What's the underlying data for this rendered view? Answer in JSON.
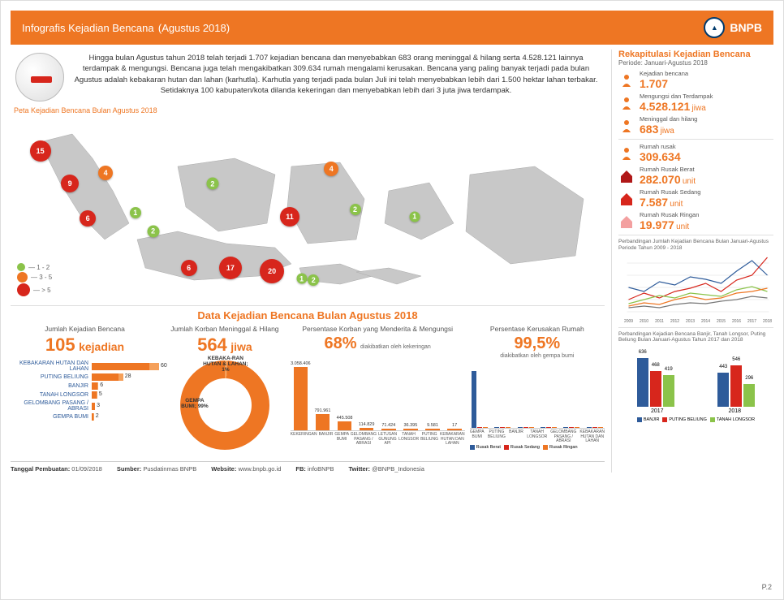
{
  "header": {
    "title": "Infografis Kejadian Bencana",
    "period": "(Agustus 2018)",
    "org": "BNPB"
  },
  "intro": "Hingga bulan Agustus tahun 2018 telah terjadi 1.707 kejadian bencana dan menyebabkan 683 orang meninggal & hilang serta 4.528.121 lainnya terdampak & mengungsi. Bencana juga telah mengakibatkan 309.634 rumah mengalami kerusakan. Bencana yang paling banyak terjadi pada bulan Agustus adalah kebakaran hutan dan lahan (karhutla). Karhutla yang terjadi pada bulan Juli ini telah menyebabkan lebih dari 1.500 hektar lahan terbakar. Setidaknya 100 kabupaten/kota dilanda kekeringan dan menyebabkan lebih dari 3 juta jiwa terdampak.",
  "map": {
    "title": "Peta Kejadian Bencana Bulan Agustus 2018",
    "bubbles": [
      {
        "v": "15",
        "x": 5,
        "y": 18,
        "c": "#d7261c",
        "s": 26
      },
      {
        "v": "9",
        "x": 10,
        "y": 36,
        "c": "#d7261c",
        "s": 22
      },
      {
        "v": "4",
        "x": 16,
        "y": 30,
        "c": "#ee7623",
        "s": 18
      },
      {
        "v": "6",
        "x": 13,
        "y": 55,
        "c": "#d7261c",
        "s": 20
      },
      {
        "v": "1",
        "x": 21,
        "y": 52,
        "c": "#8bc34a",
        "s": 14
      },
      {
        "v": "2",
        "x": 24,
        "y": 62,
        "c": "#8bc34a",
        "s": 15
      },
      {
        "v": "6",
        "x": 30,
        "y": 82,
        "c": "#d7261c",
        "s": 20
      },
      {
        "v": "17",
        "x": 37,
        "y": 82,
        "c": "#d7261c",
        "s": 28
      },
      {
        "v": "20",
        "x": 44,
        "y": 84,
        "c": "#d7261c",
        "s": 30
      },
      {
        "v": "1",
        "x": 49,
        "y": 88,
        "c": "#8bc34a",
        "s": 13
      },
      {
        "v": "2",
        "x": 51,
        "y": 89,
        "c": "#8bc34a",
        "s": 14
      },
      {
        "v": "2",
        "x": 34,
        "y": 36,
        "c": "#8bc34a",
        "s": 15
      },
      {
        "v": "11",
        "x": 47,
        "y": 54,
        "c": "#d7261c",
        "s": 24
      },
      {
        "v": "4",
        "x": 54,
        "y": 28,
        "c": "#ee7623",
        "s": 18
      },
      {
        "v": "2",
        "x": 58,
        "y": 50,
        "c": "#8bc34a",
        "s": 14
      },
      {
        "v": "1",
        "x": 68,
        "y": 54,
        "c": "#8bc34a",
        "s": 13
      }
    ],
    "legend": [
      {
        "c": "#8bc34a",
        "s": 10,
        "t": "1 - 2"
      },
      {
        "c": "#ee7623",
        "s": 13,
        "t": "3 - 5"
      },
      {
        "c": "#d7261c",
        "s": 16,
        "t": "> 5"
      }
    ]
  },
  "monthly": {
    "title": "Data Kejadian Bencana Bulan Agustus 2018",
    "count": {
      "label": "Jumlah Kejadian Bencana",
      "value": "105",
      "unit": "kejadian"
    },
    "deaths": {
      "label": "Jumlah Korban Meninggal & Hilang",
      "value": "564",
      "unit": "jiwa"
    },
    "affected": {
      "label": "Persentase Korban yang Menderita & Mengungsi",
      "value": "68%",
      "note": "diakibatkan oleh kekeringan"
    },
    "damage": {
      "label": "Persentase Kerusakan Rumah",
      "value": "99,5%",
      "note": "diakibatkan oleh gempa bumi"
    }
  },
  "hbars": {
    "max": 60,
    "items": [
      {
        "label": "KEBAKARAN HUTAN DAN LAHAN",
        "v": 60
      },
      {
        "label": "PUTING BELIUNG",
        "v": 28
      },
      {
        "label": "BANJIR",
        "v": 6
      },
      {
        "label": "TANAH LONGSOR",
        "v": 5
      },
      {
        "label": "GELOMBANG PASANG / ABRASI",
        "v": 3
      },
      {
        "label": "GEMPA BUMI",
        "v": 2
      }
    ]
  },
  "donut": {
    "gempa": "GEMPA BUMI; 99%",
    "karhutla": "KEBAKA-RAN HUTAN & LAHAN; 1%"
  },
  "affected_bars": {
    "max": 3058406,
    "items": [
      {
        "cat": "KEKERINGAN",
        "v": 3058406,
        "t": "3.058.406"
      },
      {
        "cat": "BANJIR",
        "v": 791961,
        "t": "791.961"
      },
      {
        "cat": "GEMPA BUMI",
        "v": 445508,
        "t": "445.508"
      },
      {
        "cat": "GELOMBANG PASANG / ABRASI",
        "v": 114829,
        "t": "114.829"
      },
      {
        "cat": "LETUSAN GUNUNG API",
        "v": 71424,
        "t": "71.424"
      },
      {
        "cat": "TANAH LONGSOR",
        "v": 36395,
        "t": "36.395"
      },
      {
        "cat": "PUTING BELIUNG",
        "v": 9581,
        "t": "9.581"
      },
      {
        "cat": "KEBAKARAN HUTAN DAN LAHAN",
        "v": 17,
        "t": "17"
      }
    ]
  },
  "damage_bars": {
    "max": 149705,
    "colors": [
      "#2e5b9a",
      "#d7261c",
      "#ee7623"
    ],
    "legend": [
      "Rusak Berat",
      "Rusak Sedang",
      "Rusak Ringan"
    ],
    "items": [
      {
        "cat": "GEMPA BUMI",
        "v": [
          149705,
          0,
          0
        ],
        "t": "149.705"
      },
      {
        "cat": "PUTING BELIUNG",
        "v": [
          0,
          692,
          0
        ],
        "t": "692"
      },
      {
        "cat": "BANJIR",
        "v": [
          0,
          0,
          18
        ],
        "t": "18"
      },
      {
        "cat": "TANAH LONGSOR",
        "v": [
          0,
          0,
          10
        ],
        "t": "10"
      },
      {
        "cat": "GELOMBANG PASANG / ABRASI",
        "v": [
          0,
          0,
          9
        ],
        "t": "9"
      },
      {
        "cat": "KEBAKARAN HUTAN DAN LAHAN",
        "v": [
          0,
          0,
          1
        ],
        "t": "1"
      }
    ]
  },
  "recap": {
    "title": "Rekapitulasi Kejadian Bencana",
    "period": "Periode: Januari-Agustus 2018",
    "rows": [
      {
        "num": "1.707",
        "txt": "Kejadian bencana",
        "icon": "#ee7623"
      },
      {
        "num": "4.528.121",
        "unit": "jiwa",
        "txt": "Mengungsi dan Terdampak",
        "icon": "#ee7623"
      },
      {
        "num": "683",
        "unit": "jiwa",
        "txt": "Meninggal dan hilang",
        "icon": "#ee7623"
      },
      {
        "num": "309.634",
        "txt": "Rumah rusak",
        "icon": "#ee7623"
      },
      {
        "num": "282.070",
        "unit": "unit",
        "txt": "Rumah Rusak Berat",
        "icon": "#b01818"
      },
      {
        "num": "7.587",
        "unit": "unit",
        "txt": "Rumah Rusak Sedang",
        "icon": "#d7261c"
      },
      {
        "num": "19.977",
        "unit": "unit",
        "txt": "Rumah Rusak Ringan",
        "icon": "#f3a0a0"
      }
    ]
  },
  "trend": {
    "title": "Perbandingan Jumlah Kejadian Bencana Bulan Januari-Agustus Periode Tahun 2009 - 2018",
    "years": [
      "2009",
      "2010",
      "2011",
      "2012",
      "2013",
      "2014",
      "2015",
      "2016",
      "2017",
      "2018"
    ],
    "series": [
      {
        "c": "#2e5b9a",
        "pts": [
          35,
          30,
          42,
          38,
          48,
          45,
          40,
          55,
          68,
          50
        ]
      },
      {
        "c": "#d7261c",
        "pts": [
          20,
          28,
          22,
          30,
          34,
          40,
          30,
          44,
          50,
          72
        ]
      },
      {
        "c": "#8bc34a",
        "pts": [
          15,
          20,
          25,
          22,
          28,
          26,
          24,
          32,
          36,
          30
        ]
      },
      {
        "c": "#ee7623",
        "pts": [
          12,
          16,
          14,
          20,
          24,
          20,
          22,
          28,
          30,
          34
        ]
      },
      {
        "c": "#777",
        "pts": [
          10,
          12,
          10,
          14,
          16,
          15,
          18,
          20,
          24,
          22
        ]
      }
    ]
  },
  "compare": {
    "title": "Perbandingan Kejadian Bencana Banjir, Tanah Longsor, Puting Beliung Bulan Januari-Agustus Tahun 2017 dan 2018",
    "colors": {
      "banjir": "#2e5b9a",
      "puting": "#d7261c",
      "tanah": "#8bc34a"
    },
    "legend": [
      "BANJIR",
      "PUTING BELIUNG",
      "TANAH LONGSOR"
    ],
    "max": 636,
    "groups": [
      {
        "year": "2017",
        "v": [
          636,
          468,
          419
        ]
      },
      {
        "year": "2018",
        "v": [
          443,
          546,
          296
        ]
      }
    ]
  },
  "footer": {
    "tgl_l": "Tanggal Pembuatan:",
    "tgl_v": "01/09/2018",
    "src_l": "Sumber:",
    "src_v": "Pusdatinmas BNPB",
    "web_l": "Website:",
    "web_v": "www.bnpb.go.id",
    "fb_l": "FB:",
    "fb_v": "infoBNPB",
    "tw_l": "Twitter:",
    "tw_v": "@BNPB_Indonesia",
    "page": "P.2"
  }
}
